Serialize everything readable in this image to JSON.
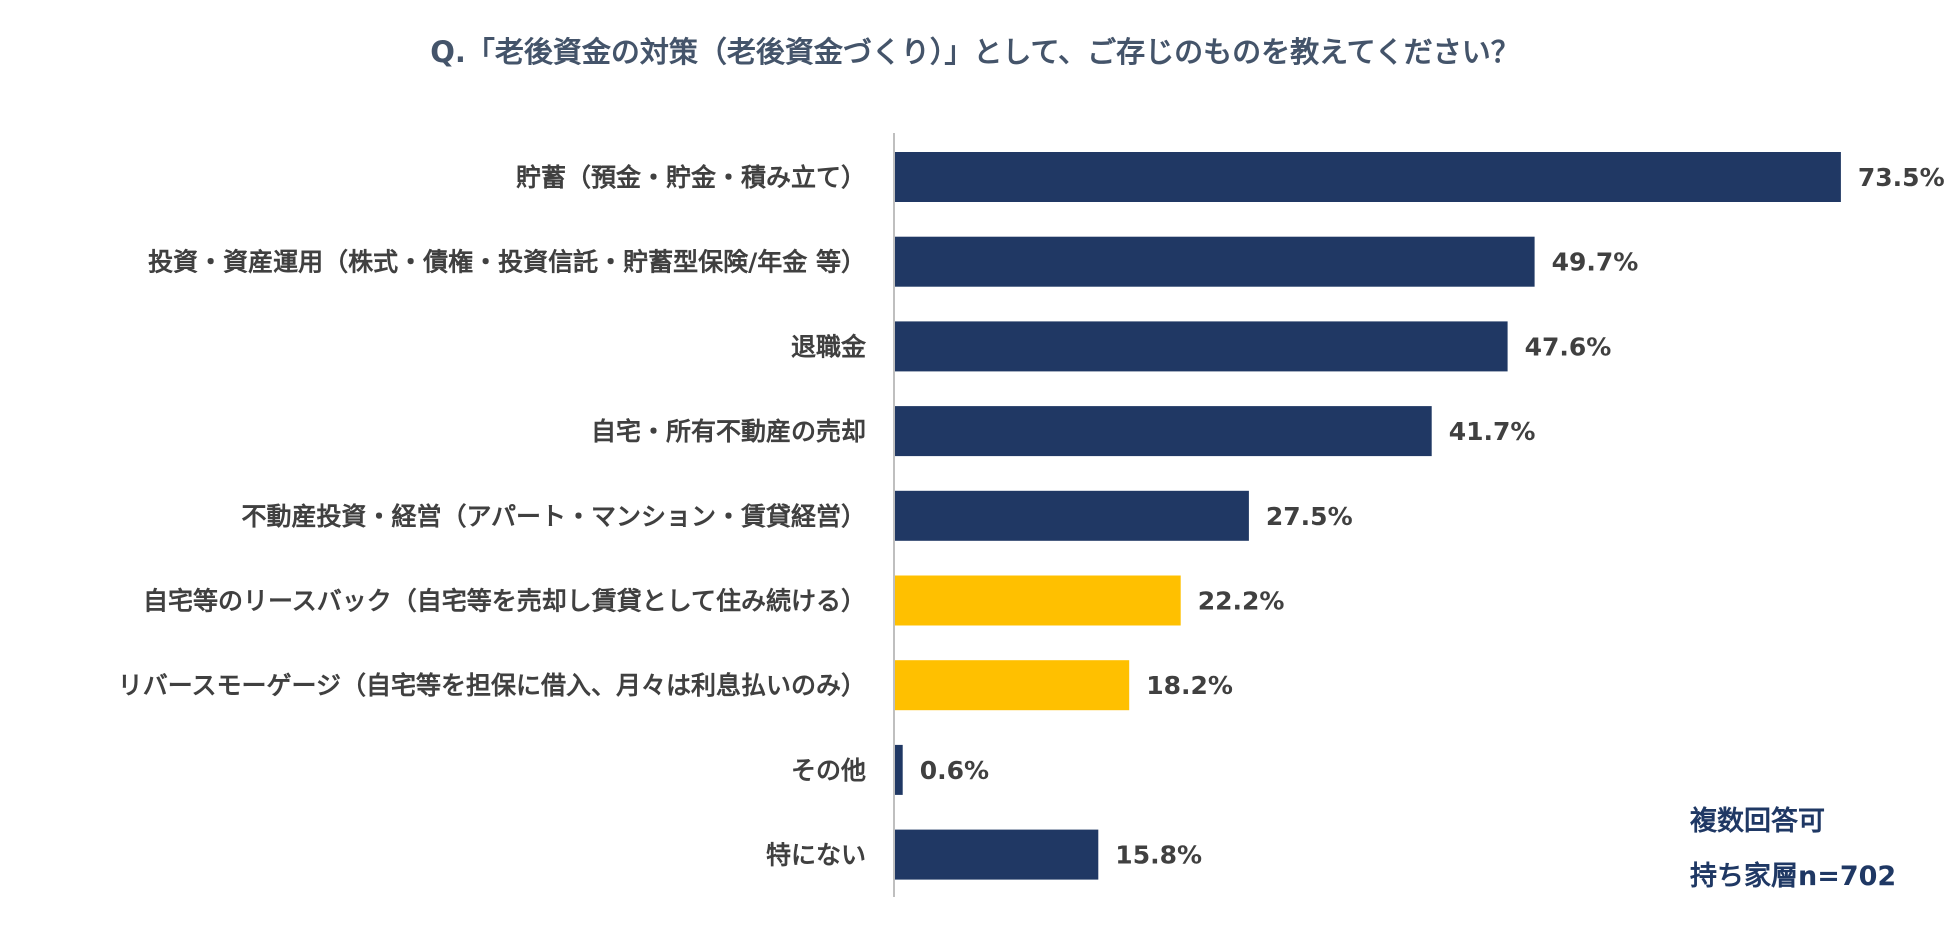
{
  "chart_data": {
    "type": "bar",
    "orientation": "horizontal",
    "title": "Q.「老後資金の対策（老後資金づくり）」として、ご存じのものを教えてください？",
    "categories": [
      "貯蓄（預金・貯金・積み立て）",
      "投資・資産運用（株式・債権・投資信託・貯蓄型保険/年金 等）",
      "退職金",
      "自宅・所有不動産の売却",
      "不動産投資・経営（アパート・マンション・賃貸経営）",
      "自宅等のリースバック（自宅等を売却し賃貸として住み続ける）",
      "リバースモーゲージ（自宅等を担保に借入、月々は利息払いのみ）",
      "その他",
      "特にない"
    ],
    "values": [
      73.5,
      49.7,
      47.6,
      41.7,
      27.5,
      22.2,
      18.2,
      0.6,
      15.8
    ],
    "value_labels": [
      "73.5%",
      "49.7%",
      "47.6%",
      "41.7%",
      "27.5%",
      "22.2%",
      "18.2%",
      "0.6%",
      "15.8%"
    ],
    "highlight": [
      false,
      false,
      false,
      false,
      false,
      true,
      true,
      false,
      false
    ],
    "colors": {
      "bar": "#203864",
      "highlight": "#ffc000",
      "title": "#44546a",
      "label": "#404040",
      "note": "#1f3864",
      "axis": "#bfbfbf"
    },
    "notes": [
      "複数回答可",
      "持ち家層n=702"
    ],
    "grid": false,
    "legend": "none"
  }
}
